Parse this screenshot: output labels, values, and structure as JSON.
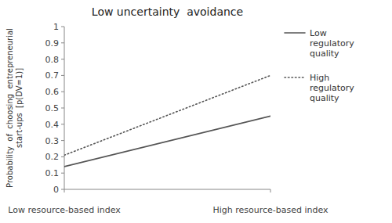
{
  "chart_data": {
    "type": "line",
    "title": "Low uncertainty  avoidance",
    "y_label": "Probability  of  choosing  entrepreneurial\nstart-ups  [p(DV=1)]",
    "x": [
      0,
      1
    ],
    "xlim": [
      0,
      1
    ],
    "xticks": [
      {
        "value": 0,
        "label": "Low resource-based index"
      },
      {
        "value": 1,
        "label": "High resource-based index"
      }
    ],
    "series": [
      {
        "name": "Low\nregulatory\nquality",
        "color": "#555555",
        "line_style": "solid",
        "values": [
          0.14,
          0.45
        ]
      },
      {
        "name": "High\nregulatory\nquality",
        "color": "#555555",
        "line_style": "dotted",
        "values": [
          0.21,
          0.7
        ]
      }
    ],
    "ylim": [
      0,
      1
    ],
    "yticks": [
      0,
      0.1,
      0.2,
      0.3,
      0.4,
      0.5,
      0.6,
      0.7,
      0.8,
      0.9,
      1
    ],
    "grid": false,
    "legend": "right"
  }
}
